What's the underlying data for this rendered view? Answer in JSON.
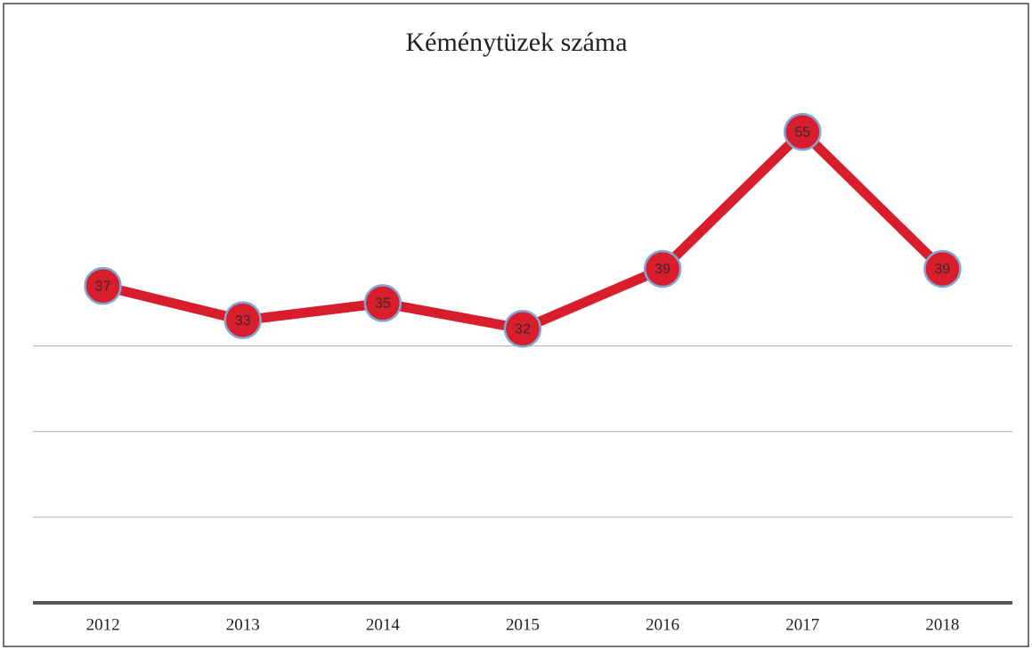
{
  "chart_data": {
    "type": "line",
    "title": "Kéménytüzek száma",
    "categories": [
      "2012",
      "2013",
      "2014",
      "2015",
      "2016",
      "2017",
      "2018"
    ],
    "values": [
      37,
      33,
      35,
      32,
      39,
      55,
      39
    ],
    "color": "#d81e2c",
    "ylim": [
      0,
      60
    ],
    "yticks": [
      10,
      20,
      30
    ],
    "grid": true
  }
}
